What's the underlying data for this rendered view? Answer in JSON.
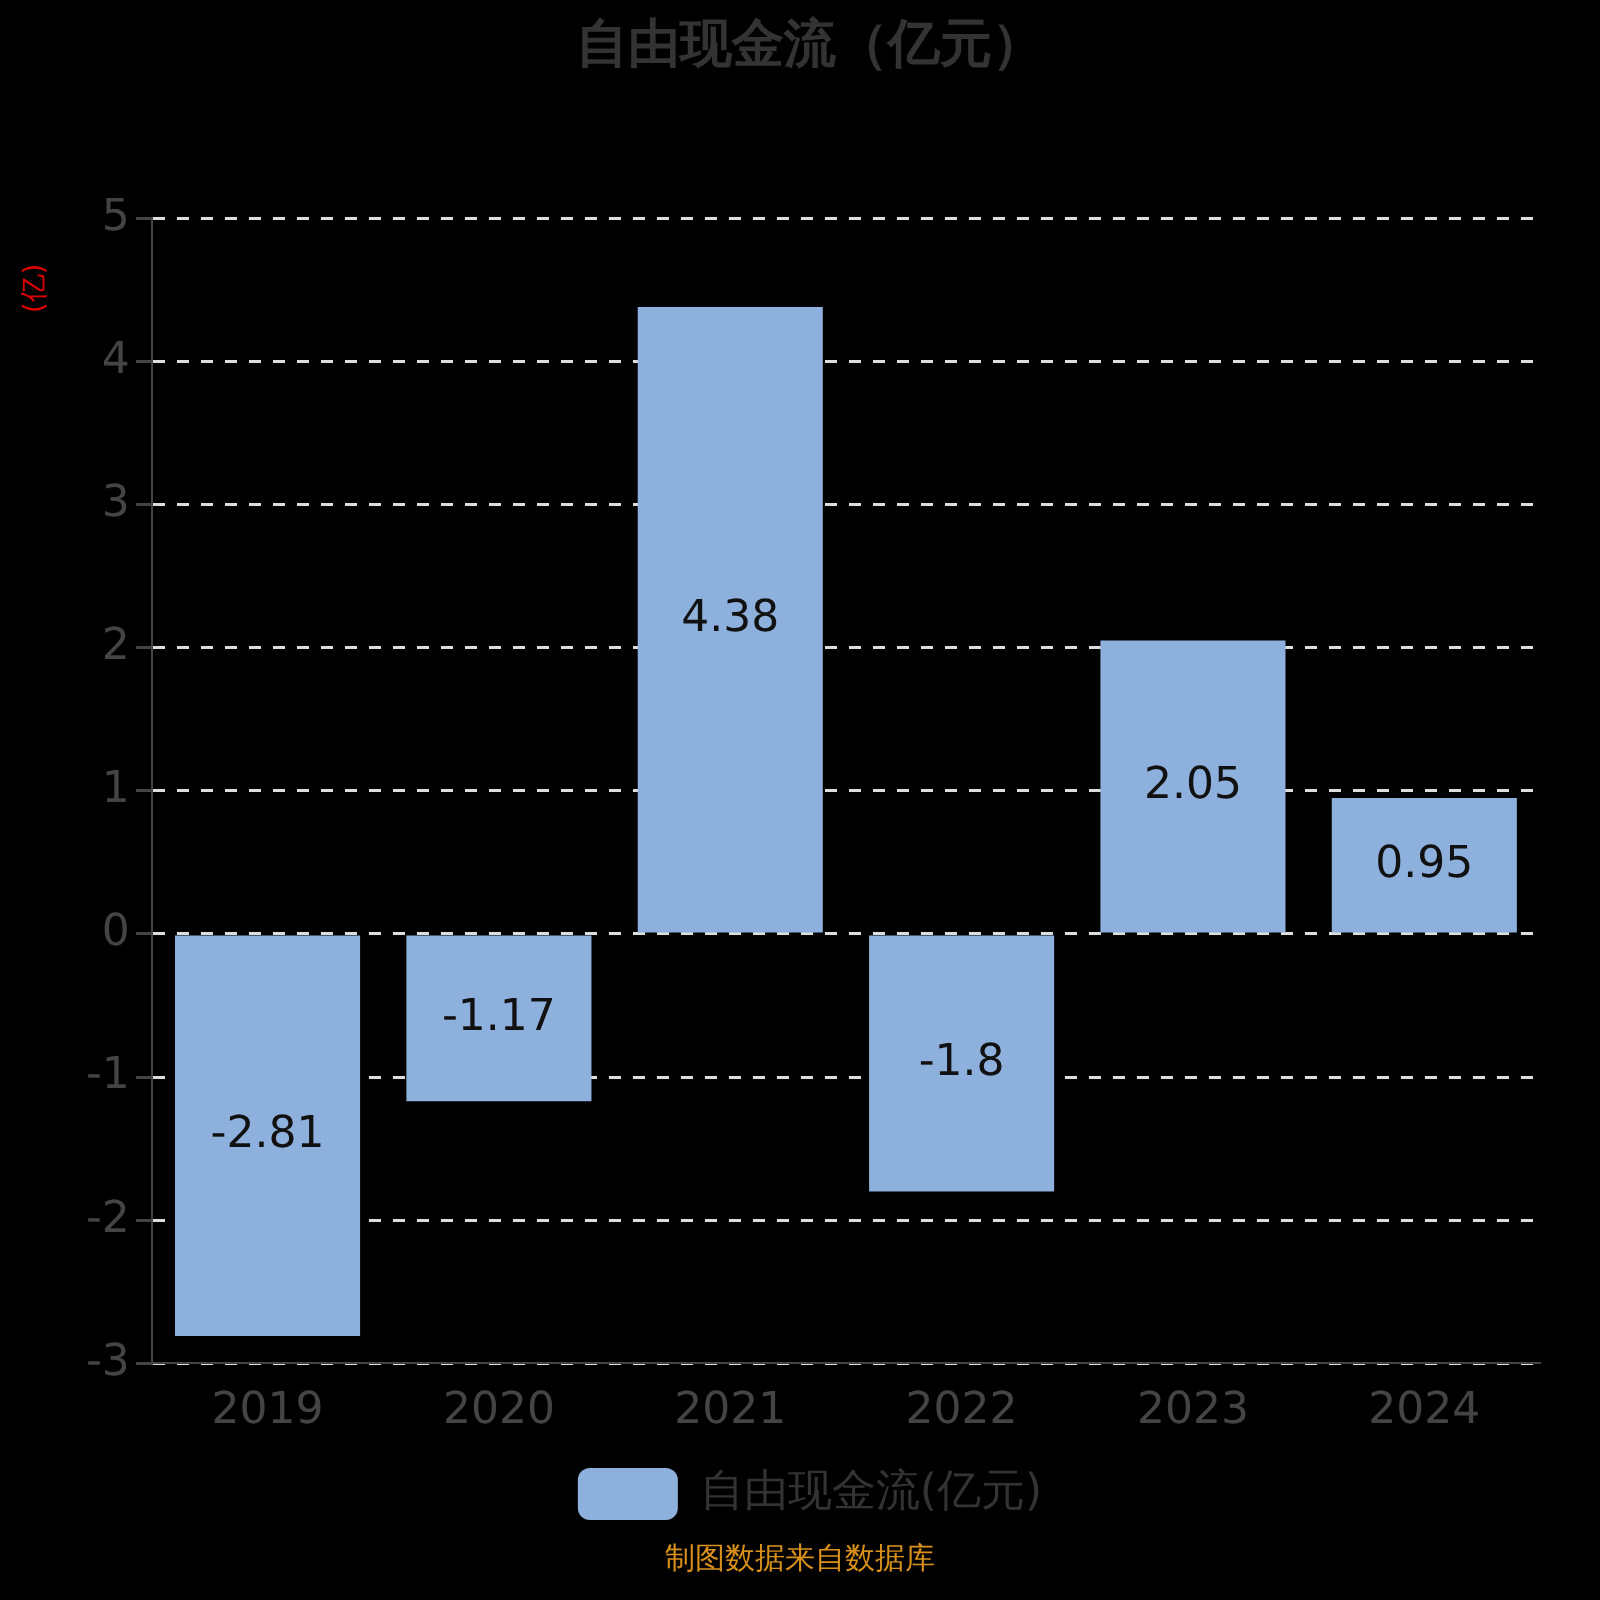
{
  "chart_data": {
    "type": "bar",
    "title": "自由现金流（亿元）",
    "ylabel": "(亿)",
    "categories": [
      "2019",
      "2020",
      "2021",
      "2022",
      "2023",
      "2024"
    ],
    "series": [
      {
        "name": "自由现金流(亿元)",
        "color": "#8eb0dc",
        "values": [
          -2.81,
          -1.17,
          4.38,
          -1.8,
          2.05,
          0.95
        ]
      }
    ],
    "ylim": [
      -3,
      5
    ],
    "yticks": [
      -3,
      -2,
      -1,
      0,
      1,
      2,
      3,
      4,
      5
    ],
    "grid": "y",
    "legend": "bottom",
    "data_labels": true,
    "annotations": [
      "制图数据来自数据库"
    ]
  }
}
